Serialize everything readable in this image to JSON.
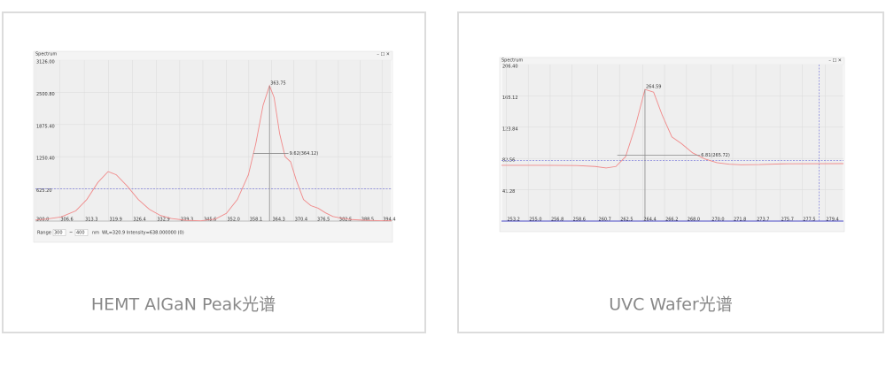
{
  "chart_data": [
    {
      "type": "line",
      "title": "Spectrum",
      "caption": "HEMT AlGaN Peak光谱",
      "x": [
        300,
        303,
        307,
        311,
        314,
        317,
        319.8,
        322,
        325,
        328,
        331,
        334,
        337,
        341,
        345,
        349,
        352,
        355,
        358,
        360,
        362,
        363.75,
        365,
        366.5,
        368,
        369.5,
        371,
        373,
        375,
        377,
        379,
        381,
        383,
        386,
        390,
        394,
        397
      ],
      "values": [
        20,
        40,
        80,
        200,
        420,
        750,
        962,
        900,
        680,
        420,
        230,
        110,
        50,
        15,
        5,
        40,
        150,
        420,
        900,
        1500,
        2250,
        2630,
        2400,
        1700,
        1250,
        1150,
        800,
        420,
        300,
        250,
        160,
        90,
        60,
        30,
        15,
        8,
        5
      ],
      "color": "#f08a8a",
      "xlim": [
        300,
        397
      ],
      "ylim": [
        0,
        3126
      ],
      "xticks": [
        {
          "value": 300,
          "label": "300.0"
        },
        306.6,
        313.3,
        319.9,
        326.4,
        332.9,
        339.3,
        345.6,
        {
          "value": 352,
          "label": "352.0"
        },
        358.1,
        364.3,
        370.4,
        376.5,
        382.5,
        388.5,
        394.4
      ],
      "yticks": [
        {
          "value": 625.2,
          "label": "625.20"
        },
        {
          "value": 1250.4,
          "label": "1250.40"
        },
        {
          "value": 1875.4,
          "label": "1875.40"
        },
        {
          "value": 2500.8,
          "label": "2500.80"
        },
        {
          "value": 3126,
          "label": "3126.00"
        }
      ],
      "grid": true,
      "peak": 363.75,
      "fwhm": {
        "value": 9.62,
        "center": 364.12,
        "label": "9.62(364.12)"
      },
      "ref_y": 625.2,
      "controls": {
        "range_label": "Range",
        "from": 300,
        "to": 400,
        "unit": "nm",
        "status": "WL=320.9  Intensity=638.000000 (0)"
      }
    },
    {
      "type": "line",
      "title": "Spectrum",
      "caption": "UVC Wafer光谱",
      "x": [
        252.8,
        256,
        259,
        260.5,
        261.4,
        262.2,
        263,
        263.8,
        264.59,
        265.3,
        266,
        266.8,
        267.6,
        268.5,
        269.5,
        270.5,
        271.5,
        272.5,
        274,
        276,
        280.9
      ],
      "values": [
        73.5,
        73.5,
        73.3,
        72,
        70,
        72,
        85,
        125,
        173.7,
        170,
        140,
        111,
        102,
        90,
        82,
        77,
        75,
        74.3,
        74.5,
        75.5,
        75.8
      ],
      "color": "#f08a8a",
      "xlim": [
        252.8,
        280.9
      ],
      "ylim": [
        0,
        206.4
      ],
      "xticks": [
        253.2,
        {
          "value": 255,
          "label": "255.0"
        },
        256.8,
        258.6,
        260.7,
        262.5,
        264.4,
        266.2,
        {
          "value": 268,
          "label": "268.0"
        },
        {
          "value": 270,
          "label": "270.0"
        },
        271.8,
        273.7,
        275.7,
        277.5,
        279.4
      ],
      "yticks": [
        41.28,
        82.56,
        123.84,
        165.12,
        {
          "value": 206.4,
          "label": "206.40"
        }
      ],
      "grid": true,
      "peak": 264.59,
      "fwhm": {
        "value": 6.81,
        "center": 265.72,
        "label": "6.81(265.72)"
      },
      "ref_y": 80,
      "ref_x": 278.9
    }
  ]
}
